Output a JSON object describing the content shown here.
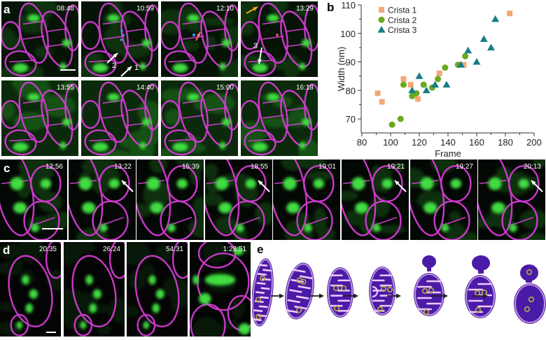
{
  "figure": {
    "labels": {
      "a": "a",
      "b": "b",
      "c": "c",
      "d": "d",
      "e": "e"
    },
    "colors": {
      "membrane": "#d63ad6",
      "matrix_green": "#3fdc3f",
      "background_dark": "#050805",
      "crista1": "#f4a878",
      "crista2": "#6aaa1e",
      "crista3": "#167d86",
      "mito_fill": "#4a1ba6",
      "mito_outline": "#b98ae6",
      "cristae": "#f0c8ff",
      "nucleoid_ring": "#b8b040",
      "arrow_white": "#ffffff",
      "arrow_orange": "#f2a51e",
      "marker_blue": "#3fa0ff",
      "marker_red": "#ff6a6a"
    }
  },
  "panel_a": {
    "timestamps": [
      "08:48",
      "10:59",
      "12:10",
      "13:29",
      "13:55",
      "14:40",
      "15:00",
      "16:18"
    ],
    "annotations": {
      "arrow1_label": "1",
      "arrow2_label": "2",
      "arrow3_label": "3"
    }
  },
  "panel_c": {
    "timestamps": [
      "12:56",
      "13:22",
      "15:39",
      "18:55",
      "19:01",
      "19:21",
      "19:27",
      "20:13"
    ]
  },
  "panel_d": {
    "timestamps": [
      "20:35",
      "26:24",
      "54:31",
      "1:29:51"
    ]
  },
  "chart_data": {
    "type": "scatter",
    "title": "",
    "xlabel": "Frame",
    "ylabel": "Width (nm)",
    "xlim": [
      80,
      200
    ],
    "ylim": [
      66,
      110
    ],
    "xticks": [
      80,
      100,
      120,
      140,
      160,
      180,
      200
    ],
    "yticks": [
      70,
      80,
      90,
      100,
      110
    ],
    "grid": false,
    "legend_position": "upper-left",
    "series": [
      {
        "name": "Crista 1",
        "marker": "square",
        "color": "#f4a878",
        "points": [
          [
            91,
            79
          ],
          [
            94,
            76
          ],
          [
            109,
            84
          ],
          [
            114,
            82
          ],
          [
            119,
            77
          ],
          [
            134,
            86
          ],
          [
            151,
            89
          ],
          [
            183,
            107
          ]
        ]
      },
      {
        "name": "Crista 2",
        "marker": "circle",
        "color": "#6aaa1e",
        "points": [
          [
            101,
            68
          ],
          [
            107,
            70
          ],
          [
            109,
            82
          ],
          [
            115,
            78
          ],
          [
            118,
            79
          ],
          [
            123,
            82
          ],
          [
            129,
            81
          ],
          [
            133,
            84
          ],
          [
            138,
            88
          ],
          [
            147,
            89
          ],
          [
            152,
            92
          ]
        ]
      },
      {
        "name": "Crista 3",
        "marker": "triangle",
        "color": "#167d86",
        "points": [
          [
            115,
            80
          ],
          [
            120,
            85
          ],
          [
            125,
            80
          ],
          [
            131,
            82
          ],
          [
            139,
            82
          ],
          [
            149,
            89
          ],
          [
            154,
            94
          ],
          [
            160,
            90
          ],
          [
            165,
            98
          ],
          [
            170,
            95
          ],
          [
            173,
            105
          ]
        ]
      }
    ]
  },
  "panel_e": {
    "stages": 7,
    "description_icons": [
      "mitochondrion-elongated",
      "mitochondrion-curved",
      "mitochondrion-oval",
      "mitochondrion-oval-septum",
      "mitochondrion-budding",
      "mitochondrion-budding-large",
      "mitochondrion-swollen"
    ]
  }
}
